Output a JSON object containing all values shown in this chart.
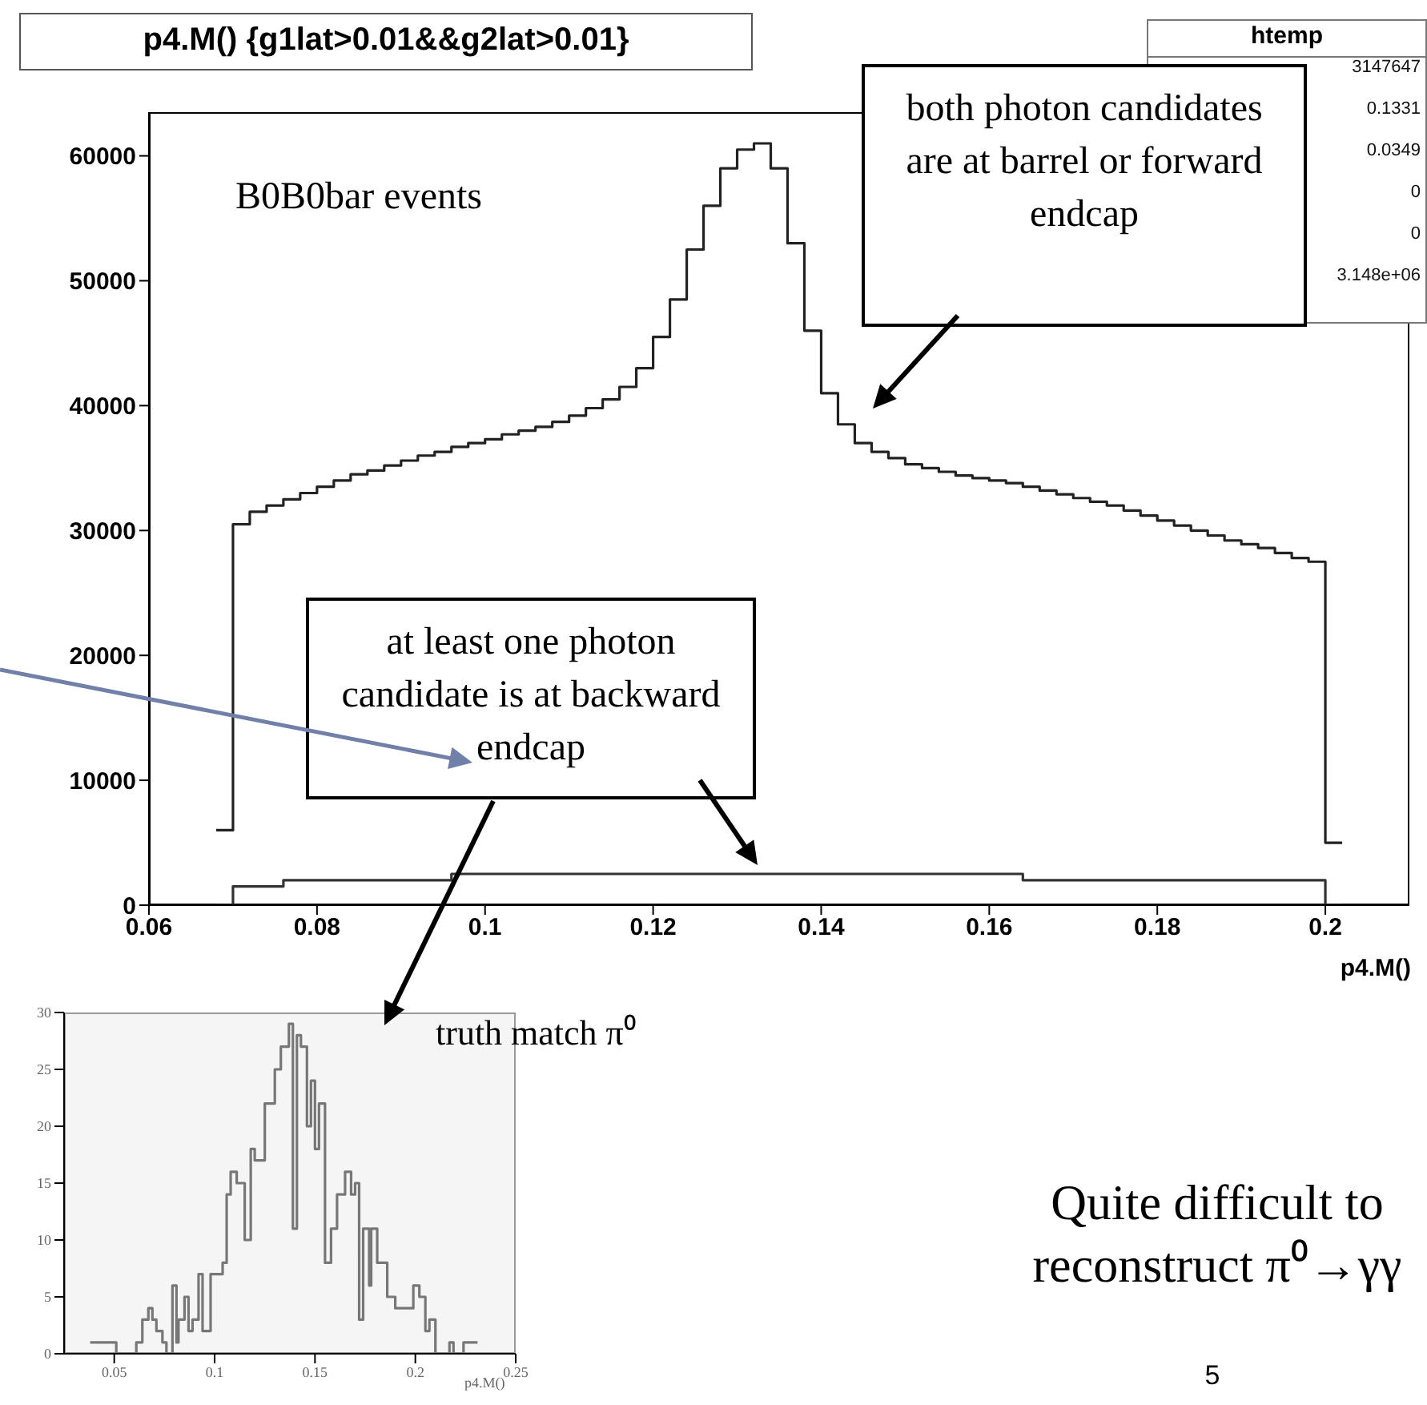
{
  "chart_data": [
    {
      "type": "histogram",
      "title": "p4.M() {g1lat>0.01&&g2lat>0.01}",
      "xlabel": "p4.M()",
      "bins": [
        0.068,
        0.07,
        0.072,
        0.074,
        0.076,
        0.078,
        0.08,
        0.082,
        0.084,
        0.086,
        0.088,
        0.09,
        0.092,
        0.094,
        0.096,
        0.098,
        0.1,
        0.102,
        0.104,
        0.106,
        0.108,
        0.11,
        0.112,
        0.114,
        0.116,
        0.118,
        0.12,
        0.122,
        0.124,
        0.126,
        0.128,
        0.13,
        0.132,
        0.134,
        0.136,
        0.138,
        0.14,
        0.142,
        0.144,
        0.146,
        0.148,
        0.15,
        0.152,
        0.154,
        0.156,
        0.158,
        0.16,
        0.162,
        0.164,
        0.166,
        0.168,
        0.17,
        0.172,
        0.174,
        0.176,
        0.178,
        0.18,
        0.182,
        0.184,
        0.186,
        0.188,
        0.19,
        0.192,
        0.194,
        0.196,
        0.198,
        0.2,
        0.202
      ],
      "series": [
        {
          "color": "#222222",
          "values": [
            6000,
            30500,
            31500,
            32000,
            32500,
            33000,
            33500,
            34000,
            34500,
            34800,
            35200,
            35600,
            36000,
            36300,
            36700,
            37000,
            37300,
            37700,
            38000,
            38300,
            38700,
            39200,
            39800,
            40500,
            41500,
            43000,
            45500,
            48500,
            52500,
            56000,
            59000,
            60500,
            61000,
            59000,
            53000,
            46000,
            41000,
            38500,
            37000,
            36300,
            35800,
            35300,
            35000,
            34700,
            34400,
            34200,
            34000,
            33800,
            33500,
            33200,
            32900,
            32600,
            32300,
            32000,
            31600,
            31200,
            30800,
            30400,
            30000,
            29600,
            29200,
            28900,
            28600,
            28200,
            27800,
            27500,
            5000
          ]
        },
        {
          "color": "#333333",
          "values": [
            0,
            1500,
            1500,
            1500,
            2000,
            2000,
            2000,
            2000,
            2000,
            2000,
            2000,
            2000,
            2000,
            2000,
            2500,
            2500,
            2500,
            2500,
            2500,
            2500,
            2500,
            2500,
            2500,
            2500,
            2500,
            2500,
            2500,
            2500,
            2500,
            2500,
            2500,
            2500,
            2500,
            2500,
            2500,
            2500,
            2500,
            2500,
            2500,
            2500,
            2500,
            2500,
            2500,
            2500,
            2500,
            2500,
            2500,
            2500,
            2000,
            2000,
            2000,
            2000,
            2000,
            2000,
            2000,
            2000,
            2000,
            2000,
            2000,
            2000,
            2000,
            2000,
            2000,
            2000,
            2000,
            2000,
            0
          ]
        }
      ],
      "xlim": [
        0.06,
        0.21
      ],
      "xticks": [
        0.06,
        0.08,
        0.1,
        0.12,
        0.14,
        0.16,
        0.18,
        0.2
      ],
      "ylim": [
        0,
        63500
      ],
      "yticks": [
        0,
        10000,
        20000,
        30000,
        40000,
        50000,
        60000
      ],
      "annotations": [
        "htemp",
        "3147647",
        "0.1331",
        "0.0349",
        "0",
        "0",
        "3.148e+06",
        "B0B0bar events",
        "both photon candidates are at barrel or forward endcap",
        "at least one photon candidate is at backward endcap",
        "Quite difficult to reconstruct π⁰→γγ",
        "5"
      ]
    },
    {
      "type": "histogram",
      "xlabel": "p4.M()",
      "bins": [
        0.038,
        0.051,
        0.061,
        0.064,
        0.067,
        0.069,
        0.071,
        0.074,
        0.076,
        0.079,
        0.081,
        0.082,
        0.085,
        0.087,
        0.089,
        0.092,
        0.094,
        0.098,
        0.104,
        0.106,
        0.108,
        0.111,
        0.113,
        0.115,
        0.118,
        0.12,
        0.125,
        0.13,
        0.133,
        0.137,
        0.139,
        0.141,
        0.143,
        0.146,
        0.148,
        0.15,
        0.152,
        0.155,
        0.158,
        0.161,
        0.165,
        0.168,
        0.17,
        0.172,
        0.174,
        0.177,
        0.178,
        0.181,
        0.186,
        0.19,
        0.199,
        0.202,
        0.205,
        0.207,
        0.21,
        0.217,
        0.219,
        0.224,
        0.231
      ],
      "values": [
        1,
        0,
        1,
        3,
        4,
        3,
        2,
        1,
        0,
        6,
        1,
        3,
        5,
        2,
        3,
        7,
        2,
        7,
        8,
        14,
        16,
        15,
        15,
        10,
        18,
        17,
        22,
        25,
        27,
        29,
        11,
        28,
        27,
        20,
        24,
        18,
        22,
        8,
        11,
        14,
        16,
        14,
        15,
        3,
        11,
        6,
        11,
        8,
        5,
        4,
        6,
        5,
        2,
        3,
        0,
        1,
        0,
        1
      ],
      "color": "#777777",
      "xlim": [
        0.025,
        0.25
      ],
      "xticks": [
        0.05,
        0.1,
        0.15,
        0.2,
        0.25
      ],
      "ylim": [
        0,
        30
      ],
      "yticks": [
        0,
        5,
        10,
        15,
        20,
        25,
        30
      ],
      "annotations": [
        "truth match π⁰"
      ]
    }
  ]
}
